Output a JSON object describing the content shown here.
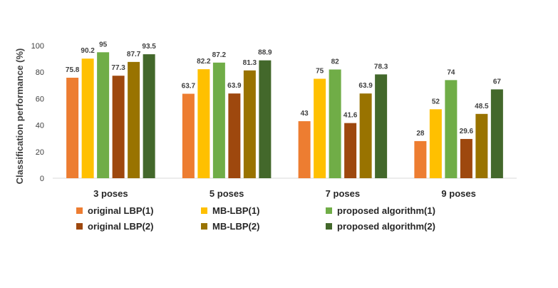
{
  "chart_data": {
    "type": "bar",
    "ylabel": "Classification performance (%)",
    "xlabel": "",
    "ylim": [
      0,
      100
    ],
    "yticks": [
      0,
      20,
      40,
      60,
      80,
      100
    ],
    "grid": false,
    "legend_position": "bottom",
    "categories": [
      "3 poses",
      "5 poses",
      "7 poses",
      "9 poses"
    ],
    "series": [
      {
        "name": "original LBP(1)",
        "color": "#ED7D31",
        "values": [
          75.8,
          63.7,
          43,
          28
        ]
      },
      {
        "name": "MB-LBP(1)",
        "color": "#FFC000",
        "values": [
          90.2,
          82.2,
          75,
          52
        ]
      },
      {
        "name": "proposed algorithm(1)",
        "color": "#70AD47",
        "values": [
          95,
          87.2,
          82,
          74
        ]
      },
      {
        "name": "original LBP(2)",
        "color": "#9E480E",
        "values": [
          77.3,
          63.9,
          41.6,
          29.6
        ]
      },
      {
        "name": "MB-LBP(2)",
        "color": "#997300",
        "values": [
          87.7,
          81.3,
          63.9,
          48.5
        ]
      },
      {
        "name": "proposed algorithm(2)",
        "color": "#43682B",
        "values": [
          93.5,
          88.9,
          78.3,
          67
        ]
      }
    ]
  }
}
